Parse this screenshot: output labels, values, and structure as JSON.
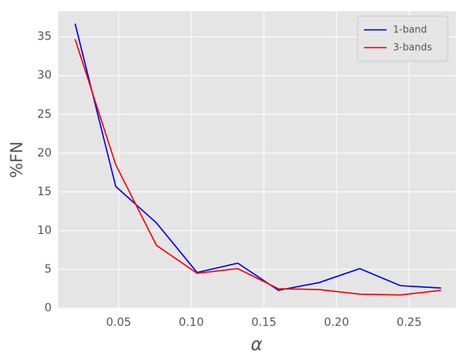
{
  "chart_data": {
    "type": "line",
    "xlabel": "α",
    "ylabel": "%FN",
    "x": [
      0.02,
      0.048,
      0.076,
      0.104,
      0.132,
      0.16,
      0.188,
      0.216,
      0.244,
      0.272
    ],
    "series": [
      {
        "name": "1-band",
        "color": "#0000ff",
        "values": [
          36.7,
          15.7,
          11.0,
          4.6,
          5.8,
          2.3,
          3.3,
          5.1,
          2.9,
          2.6
        ]
      },
      {
        "name": "3-bands",
        "color": "#ff0000",
        "values": [
          34.7,
          18.5,
          8.1,
          4.5,
          5.1,
          2.5,
          2.4,
          1.8,
          1.7,
          2.3
        ]
      }
    ],
    "xlim": [
      0.0083,
      0.2822
    ],
    "ylim": [
      0,
      38.3
    ],
    "xticks": [
      {
        "value": 0.05,
        "label": "0.05"
      },
      {
        "value": 0.1,
        "label": "0.10"
      },
      {
        "value": 0.15,
        "label": "0.15"
      },
      {
        "value": 0.2,
        "label": "0.20"
      },
      {
        "value": 0.25,
        "label": "0.25"
      }
    ],
    "yticks": [
      0,
      5,
      10,
      15,
      20,
      25,
      30,
      35
    ],
    "grid": true,
    "legend": "upper right"
  }
}
